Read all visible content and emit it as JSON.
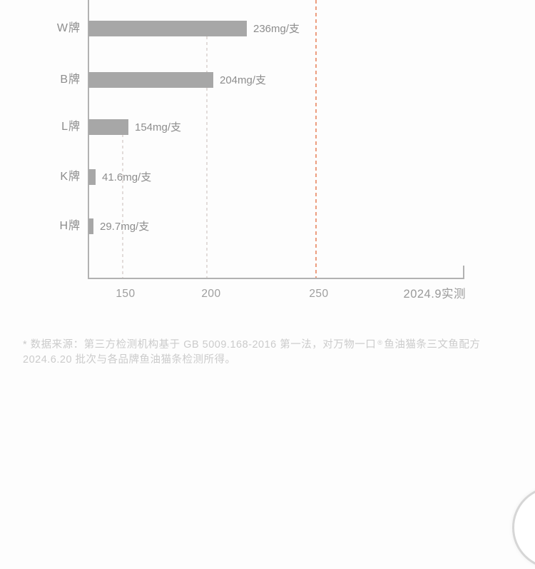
{
  "chart_data": {
    "type": "bar",
    "orientation": "horizontal",
    "title": "",
    "unit": "mg/支",
    "categories": [
      "W牌",
      "B牌",
      "L牌",
      "K牌",
      "H牌"
    ],
    "values": [
      236,
      204,
      154,
      41.6,
      29.7
    ],
    "value_labels": [
      "236mg/支",
      "204mg/支",
      "154mg/支",
      "41.6mg/支",
      "29.7mg/支"
    ],
    "x_ticks": [
      "150",
      "200",
      "250"
    ],
    "reference_line_value": 250,
    "axis_note": "2024.9实测",
    "legend": "none",
    "grid": "dashed vertical lines at 150, 200 (light gray) and 250 (orange reference)",
    "colors": {
      "bar": "#a7a7a7",
      "reference_line": "#ec9e80",
      "grid_line": "#e2dcda",
      "axis": "#b2b2b2",
      "category_text": "#8d8d8d",
      "value_text": "#8d8d8d",
      "tick_text": "#9e9e9e",
      "footnote_text": "#cbcbcb"
    }
  },
  "footnote": {
    "line1_pre": "* 数据来源：第三方检测机构基于 GB 5009.168-2016 第一法，对万物一口",
    "registered_mark": "®",
    "line1_post": "鱼油猫条三文鱼配方",
    "line2": "2024.6.20 批次与各品牌鱼油猫条检测所得。"
  }
}
